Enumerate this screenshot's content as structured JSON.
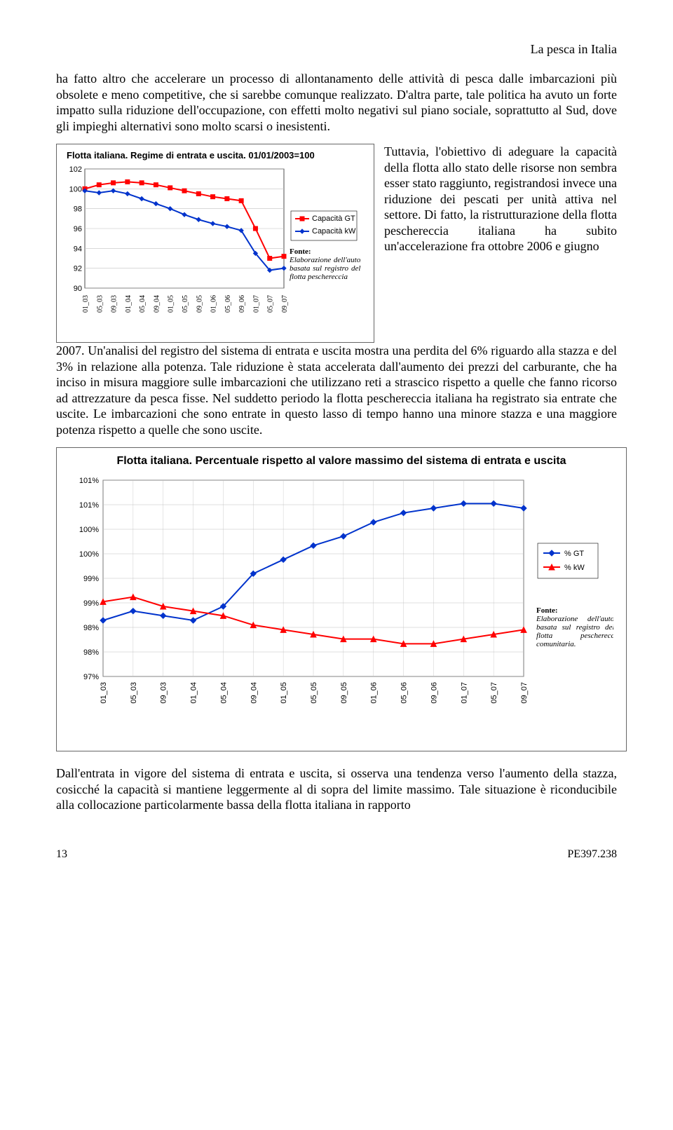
{
  "header": {
    "title": "La pesca in Italia"
  },
  "para1": "ha fatto altro che accelerare un processo di allontanamento delle attività di pesca dalle imbarcazioni più obsolete e meno competitive, che si sarebbe comunque realizzato. D'altra parte, tale politica ha avuto un forte impatto sulla riduzione dell'occupazione, con effetti molto negativi sul piano sociale, soprattutto al Sud, dove gli impieghi alternativi sono molto scarsi o inesistenti.",
  "chart1": {
    "type": "line",
    "title": "Flotta italiana. Regime di entrata e uscita. 01/01/2003=100",
    "x_categories": [
      "01_03",
      "05_03",
      "09_03",
      "01_04",
      "05_04",
      "09_04",
      "01_05",
      "05_05",
      "09_05",
      "01_06",
      "05_06",
      "09_06",
      "01_07",
      "05_07",
      "09_07"
    ],
    "ylim": [
      90,
      102
    ],
    "ytick_step": 2,
    "series": [
      {
        "name": "Capacità GT",
        "color": "#ff0000",
        "marker": "square",
        "values": [
          100.0,
          100.4,
          100.6,
          100.7,
          100.6,
          100.4,
          100.1,
          99.8,
          99.5,
          99.2,
          99.0,
          98.8,
          96.0,
          93.0,
          93.2
        ]
      },
      {
        "name": "Capacità kW",
        "color": "#0033cc",
        "marker": "diamond",
        "values": [
          99.8,
          99.6,
          99.8,
          99.5,
          99.0,
          98.5,
          98.0,
          97.4,
          96.9,
          96.5,
          96.2,
          95.8,
          93.5,
          91.8,
          92.0
        ]
      }
    ],
    "line_width": 2,
    "background_color": "#ffffff",
    "grid_color": "#c0c0c0",
    "legend_items": [
      "Capacità GT",
      "Capacità  kW"
    ],
    "source": {
      "label": "Fonte:",
      "text": "Elaborazione dell'autore basata sul registro della flotta peschereccia"
    }
  },
  "side_para": "Tuttavia, l'obiettivo di adeguare la capacità della flotta allo stato delle risorse non sembra esser stato raggiunto, registrandosi invece una riduzione dei pescati per unità attiva nel settore. Di fatto, la ristrutturazione della flotta peschereccia italiana ha subito un'accelerazione fra ottobre 2006 e giugno",
  "para2": "2007. Un'analisi del registro del sistema di entrata e uscita mostra una perdita del 6% riguardo alla stazza e del 3% in relazione alla potenza. Tale riduzione è stata accelerata dall'aumento dei prezzi del carburante, che ha inciso in misura maggiore sulle imbarcazioni che utilizzano reti a strascico rispetto a quelle che fanno ricorso ad attrezzature da pesca fisse. Nel suddetto periodo la flotta peschereccia italiana ha registrato sia entrate che uscite. Le imbarcazioni che sono entrate in questo lasso di tempo hanno una minore stazza e una maggiore potenza rispetto a quelle che sono uscite.",
  "chart2": {
    "type": "line",
    "title": "Flotta italiana. Percentuale rispetto al valore massimo del sistema di entrata e uscita",
    "x_categories": [
      "01_03",
      "05_03",
      "09_03",
      "01_04",
      "05_04",
      "09_04",
      "01_05",
      "05_05",
      "09_05",
      "01_06",
      "05_06",
      "09_06",
      "01_07",
      "05_07",
      "09_07"
    ],
    "y_labels": [
      "97%",
      "98%",
      "98%",
      "99%",
      "99%",
      "100%",
      "100%",
      "101%",
      "101%"
    ],
    "ylim": [
      97,
      101.2
    ],
    "series": [
      {
        "name": "% GT",
        "color": "#0033cc",
        "marker": "diamond",
        "values": [
          98.2,
          98.4,
          98.3,
          98.2,
          98.5,
          99.2,
          99.5,
          99.8,
          100.0,
          100.3,
          100.5,
          100.6,
          100.7,
          100.7,
          100.6
        ]
      },
      {
        "name": "% kW",
        "color": "#ff0000",
        "marker": "triangle",
        "values": [
          98.6,
          98.7,
          98.5,
          98.4,
          98.3,
          98.1,
          98.0,
          97.9,
          97.8,
          97.8,
          97.7,
          97.7,
          97.8,
          97.9,
          98.0
        ]
      }
    ],
    "line_width": 2,
    "background_color": "#ffffff",
    "grid_color": "#c0c0c0",
    "legend_items": [
      "% GT",
      "% kW"
    ],
    "source": {
      "label": "Fonte:",
      "text": "Elaborazione dell'autore basata sul registro della flotta peschereccia comunitaria."
    }
  },
  "para3": "Dall'entrata in vigore del sistema di entrata e uscita, si osserva una tendenza verso l'aumento della stazza, cosicché la capacità si mantiene leggermente al di sopra del limite massimo. Tale situazione è riconducibile alla collocazione particolarmente bassa della flotta italiana in rapporto",
  "footer": {
    "page": "13",
    "doc": "PE397.238"
  }
}
